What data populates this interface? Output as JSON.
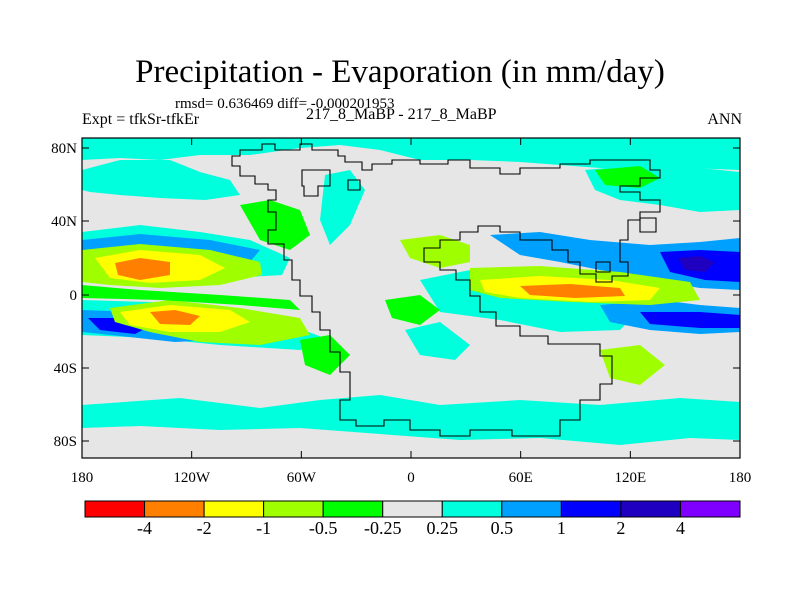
{
  "title": "Precipitation - Evaporation (in mm/day)",
  "stats_text": "rmsd= 0.636469 diff= -0.000201953",
  "experiment_text": "Expt = tfkSr-tfkEr",
  "run_text": "217_8_MaBP - 217_8_MaBP",
  "season": "ANN",
  "y_axis_labels": [
    "80N",
    "40N",
    "0",
    "40S",
    "80S"
  ],
  "x_axis_labels": [
    "180",
    "120W",
    "60W",
    "0",
    "60E",
    "120E",
    "180"
  ],
  "colorbar": {
    "colors": [
      "#ff0000",
      "#ff7f00",
      "#ffff00",
      "#9fff00",
      "#00ff00",
      "#e6e6e6",
      "#00ffdd",
      "#00a0ff",
      "#0000ff",
      "#2000c0",
      "#8000ff"
    ],
    "labels": [
      "-4",
      "-2",
      "-1",
      "-0.5",
      "-0.25",
      "0.25",
      "0.5",
      "1",
      "2",
      "4"
    ]
  }
}
